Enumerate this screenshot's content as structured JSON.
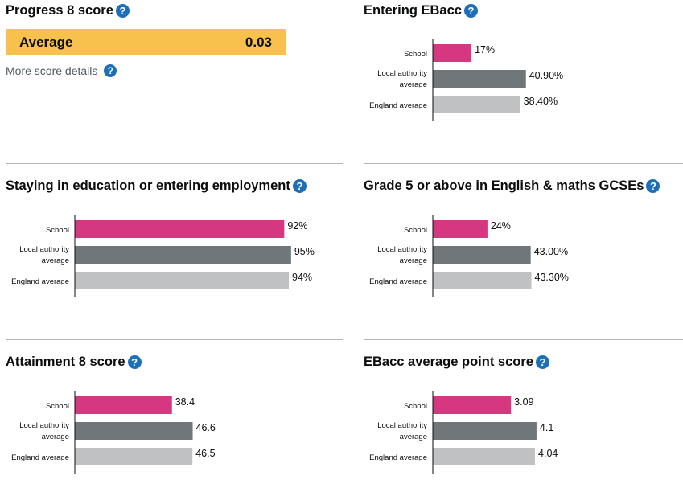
{
  "progress8": {
    "title": "Progress 8 score",
    "band_label": "Average",
    "score": "0.03",
    "details_link": "More score details",
    "band_color": "#f8c14d"
  },
  "help_icon_glyph": "?",
  "colors": {
    "school": "#d53880",
    "local_authority": "#6f777b",
    "england": "#bfc1c3",
    "help": "#1d70b8"
  },
  "chart_data": [
    {
      "id": "entering-ebacc",
      "type": "bar",
      "orientation": "horizontal",
      "title": "Entering EBacc",
      "categories": [
        "School",
        "Local authority average",
        "England average"
      ],
      "category_lines": [
        [
          "School"
        ],
        [
          "Local authority",
          "average"
        ],
        [
          "England average"
        ]
      ],
      "values": [
        17,
        40.9,
        38.4
      ],
      "value_labels": [
        "17%",
        "40.90%",
        "38.40%"
      ],
      "xlim": [
        0,
        100
      ]
    },
    {
      "id": "staying-in-education",
      "type": "bar",
      "orientation": "horizontal",
      "title": "Staying in education or entering employment",
      "categories": [
        "School",
        "Local authority average",
        "England average"
      ],
      "category_lines": [
        [
          "School"
        ],
        [
          "Local authority",
          "average"
        ],
        [
          "England average"
        ]
      ],
      "values": [
        92,
        95,
        94
      ],
      "value_labels": [
        "92%",
        "95%",
        "94%"
      ],
      "xlim": [
        0,
        100
      ]
    },
    {
      "id": "grade5-english-maths",
      "type": "bar",
      "orientation": "horizontal",
      "title": "Grade 5 or above in English & maths GCSEs",
      "categories": [
        "School",
        "Local authority average",
        "England average"
      ],
      "category_lines": [
        [
          "School"
        ],
        [
          "Local authority",
          "average"
        ],
        [
          "England average"
        ]
      ],
      "values": [
        24,
        43,
        43.3
      ],
      "value_labels": [
        "24%",
        "43.00%",
        "43.30%"
      ],
      "xlim": [
        0,
        100
      ]
    },
    {
      "id": "attainment8",
      "type": "bar",
      "orientation": "horizontal",
      "title": "Attainment 8 score",
      "categories": [
        "School",
        "Local authority average",
        "England average"
      ],
      "category_lines": [
        [
          "School"
        ],
        [
          "Local authority",
          "average"
        ],
        [
          "England average"
        ]
      ],
      "values": [
        38.4,
        46.6,
        46.5
      ],
      "value_labels": [
        "38.4",
        "46.6",
        "46.5"
      ],
      "xlim": [
        0,
        90
      ]
    },
    {
      "id": "ebacc-aps",
      "type": "bar",
      "orientation": "horizontal",
      "title": "EBacc average point score",
      "categories": [
        "School",
        "Local authority average",
        "England average"
      ],
      "category_lines": [
        [
          "School"
        ],
        [
          "Local authority",
          "average"
        ],
        [
          "England average"
        ]
      ],
      "values": [
        3.09,
        4.1,
        4.04
      ],
      "value_labels": [
        "3.09",
        "4.1",
        "4.04"
      ],
      "xlim": [
        0,
        9
      ]
    }
  ]
}
